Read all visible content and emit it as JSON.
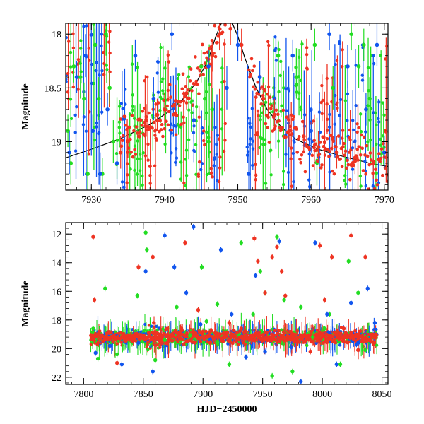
{
  "chart_data": [
    {
      "type": "scatter",
      "panel": "top",
      "xlabel": "",
      "ylabel": "Magnitude",
      "xlim": [
        7926.5,
        7970.5
      ],
      "ylim": [
        19.45,
        17.9
      ],
      "y_inverted": true,
      "x_ticks": [
        7930,
        7940,
        7950,
        7960,
        7970
      ],
      "y_ticks": [
        18,
        18.5,
        19
      ],
      "x_tick_labels": [
        "7930",
        "7940",
        "7950",
        "7960",
        "7970"
      ],
      "y_tick_labels": [
        "18",
        "18.5",
        "19"
      ],
      "has_model_curve": true,
      "model_curve": {
        "color": "#000000",
        "x": [
          7926.5,
          7930,
          7934,
          7938,
          7941,
          7943,
          7944.5,
          7946,
          7947,
          7948,
          7949,
          7950,
          7951,
          7952.5,
          7954,
          7956,
          7958,
          7961,
          7964,
          7968,
          7970.5
        ],
        "y": [
          19.15,
          19.07,
          18.97,
          18.84,
          18.7,
          18.57,
          18.43,
          18.23,
          18.02,
          17.86,
          17.86,
          18.02,
          18.23,
          18.5,
          18.7,
          18.87,
          18.98,
          19.07,
          19.13,
          19.2,
          19.23
        ]
      },
      "series": [
        {
          "name": "",
          "color": "#22dd22",
          "x": [
            7926.8,
            7927.2,
            7927.6,
            7928.5,
            7929.0,
            7929.5,
            7930.5,
            7931.0,
            7931.5,
            7932.0,
            7932.5,
            7933.0,
            7945.0,
            7945.5,
            7946.0,
            7946.5,
            7955.5,
            7958.0,
            7960.5,
            7963.0,
            7965.5,
            7966.5,
            7967.2,
            7968.0
          ],
          "y": [
            18.9,
            19.2,
            18.3,
            18.4,
            18.6,
            19.3,
            18.1,
            18.6,
            19.3,
            18.0,
            18.5,
            19.0,
            18.3,
            18.6,
            19.0,
            18.7,
            18.2,
            18.4,
            18.1,
            18.5,
            18.0,
            18.3,
            18.1,
            18.6
          ],
          "err": [
            0.15,
            0.2,
            0.15,
            0.2,
            0.15,
            0.2,
            0.15,
            0.2,
            0.15,
            0.2,
            0.15,
            0.2,
            0.15,
            0.2,
            0.15,
            0.2,
            0.15,
            0.2,
            0.15,
            0.2,
            0.15,
            0.2,
            0.15,
            0.2
          ]
        },
        {
          "name": "",
          "color": "#1155ee",
          "x": [
            7927.0,
            7928.0,
            7929.2,
            7930.2,
            7931.2,
            7932.2,
            7933.5,
            7936.0,
            7938.5,
            7941.0,
            7944.0,
            7946.0,
            7948.5,
            7950.0,
            7951.5,
            7953.0,
            7955.0,
            7957.5,
            7960.0,
            7962.5,
            7965.0,
            7967.5,
            7969.0,
            7970.0
          ],
          "y": [
            19.1,
            18.4,
            18.2,
            18.9,
            19.3,
            18.7,
            19.2,
            18.2,
            18.6,
            18.0,
            18.8,
            18.3,
            18.5,
            18.1,
            19.3,
            18.4,
            18.6,
            18.2,
            18.9,
            18.0,
            18.3,
            18.7,
            18.1,
            19.1
          ],
          "err": [
            0.2,
            0.15,
            0.2,
            0.15,
            0.2,
            0.15,
            0.2,
            0.15,
            0.2,
            0.15,
            0.2,
            0.15,
            0.2,
            0.15,
            0.2,
            0.15,
            0.2,
            0.15,
            0.2,
            0.15,
            0.2,
            0.15,
            0.2,
            0.15
          ]
        },
        {
          "name": "",
          "color": "#ee3322",
          "x": [
            7934.0,
            7935.0,
            7936.5,
            7937.5,
            7939.0,
            7940.0,
            7941.5,
            7943.0,
            7946.5,
            7947.5,
            7949.0,
            7950.5,
            7953.5,
            7955.0,
            7957.0,
            7959.0,
            7961.0,
            7963.5,
            7966.0,
            7968.5
          ],
          "y": [
            19.1,
            19.0,
            18.95,
            18.8,
            18.75,
            18.7,
            18.62,
            18.55,
            18.2,
            18.0,
            17.95,
            18.1,
            18.6,
            18.75,
            18.9,
            18.95,
            19.05,
            19.1,
            19.15,
            19.2
          ],
          "err": [
            0.15,
            0.15,
            0.15,
            0.15,
            0.15,
            0.15,
            0.15,
            0.15,
            0.15,
            0.15,
            0.15,
            0.15,
            0.15,
            0.15,
            0.15,
            0.15,
            0.15,
            0.15,
            0.15,
            0.15
          ]
        }
      ]
    },
    {
      "type": "scatter",
      "panel": "bottom",
      "xlabel": "HJD−2450000",
      "ylabel": "Magnitude",
      "xlim": [
        7785,
        8055
      ],
      "ylim": [
        22.5,
        11.2
      ],
      "y_inverted": true,
      "x_ticks": [
        7800,
        7850,
        7900,
        7950,
        8000,
        8050
      ],
      "y_ticks": [
        12,
        14,
        16,
        18,
        20,
        22
      ],
      "x_tick_labels": [
        "7800",
        "7850",
        "7900",
        "7950",
        "8000",
        "8050"
      ],
      "y_tick_labels": [
        "12",
        "14",
        "16",
        "18",
        "20",
        "22"
      ],
      "baseline_magnitude": 19.2,
      "series": [
        {
          "name": "",
          "color": "#22dd22",
          "x": [
            7808,
            7812,
            7818,
            7828,
            7845,
            7852,
            7853,
            7860,
            7868,
            7878,
            7889,
            7899,
            7903,
            7912,
            7922,
            7932,
            7942,
            7948,
            7952,
            7958,
            7962,
            7968,
            7975,
            7982,
            7992,
            8002,
            8006,
            8015,
            8022,
            8030,
            8036
          ],
          "y": [
            18.6,
            20.7,
            15.8,
            20.4,
            16.3,
            11.9,
            13.1,
            20.8,
            19.4,
            17.1,
            19.1,
            14.3,
            18.1,
            16.9,
            21.1,
            12.6,
            17.6,
            14.6,
            16.1,
            21.9,
            12.2,
            16.6,
            21.6,
            17.1,
            19.2,
            18.6,
            17.6,
            21.1,
            13.9,
            16.1,
            20.1
          ]
        },
        {
          "name": "",
          "color": "#1155ee",
          "x": [
            7810,
            7822,
            7832,
            7846,
            7852,
            7858,
            7868,
            7876,
            7886,
            7892,
            7898,
            7906,
            7915,
            7924,
            7936,
            7944,
            7952,
            7964,
            7974,
            7982,
            7994,
            8004,
            8012,
            8024,
            8030,
            8038,
            8044
          ],
          "y": [
            20.3,
            19.8,
            21.1,
            19.6,
            14.6,
            21.6,
            12.1,
            14.3,
            16.1,
            11.5,
            18.3,
            19.4,
            13.1,
            17.6,
            20.6,
            14.9,
            20.2,
            12.5,
            19.9,
            22.3,
            12.6,
            17.6,
            21.1,
            16.8,
            19.6,
            15.8,
            18.2
          ]
        },
        {
          "name": "",
          "color": "#ee3322",
          "x": [
            7808,
            7809,
            7828,
            7846,
            7858,
            7870,
            7885,
            7896,
            7906,
            7922,
            7932,
            7943,
            7946,
            7952,
            7958,
            7962,
            7966,
            7969,
            7975,
            7990,
            7998,
            8002,
            8008,
            8018,
            8024,
            8030,
            8036
          ],
          "y": [
            12.2,
            16.6,
            21.0,
            14.3,
            13.6,
            18.6,
            12.6,
            17.3,
            19.6,
            18.2,
            18.6,
            12.3,
            13.9,
            16.1,
            13.6,
            12.9,
            14.6,
            16.3,
            19.2,
            20.2,
            12.8,
            16.6,
            13.6,
            18.6,
            12.1,
            20.1,
            13.6
          ]
        }
      ]
    }
  ]
}
